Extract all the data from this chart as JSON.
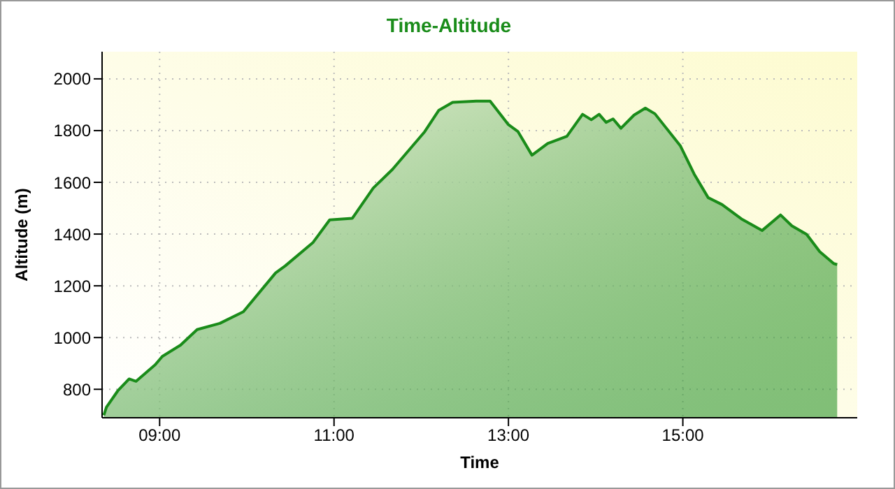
{
  "chart_data": {
    "type": "area",
    "title": "Time-Altitude",
    "xlabel": "Time",
    "ylabel": "Altitude (m)",
    "xlim": [
      8.34,
      17
    ],
    "xticks": [
      {
        "value": 9,
        "label": "09:00"
      },
      {
        "value": 11,
        "label": "11:00"
      },
      {
        "value": 13,
        "label": "13:00"
      },
      {
        "value": 15,
        "label": "15:00"
      }
    ],
    "ylim": [
      690,
      2105
    ],
    "yticks": [
      800,
      1000,
      1200,
      1400,
      1600,
      1800,
      2000
    ],
    "grid": true,
    "legend": false,
    "marker": "none",
    "line_style": "solid",
    "x": [
      8.36,
      8.39,
      8.52,
      8.65,
      8.73,
      8.95,
      9.03,
      9.24,
      9.43,
      9.69,
      9.96,
      10.33,
      10.44,
      10.76,
      10.95,
      11.21,
      11.45,
      11.67,
      12.04,
      12.2,
      12.36,
      12.63,
      12.79,
      13.0,
      13.11,
      13.27,
      13.45,
      13.67,
      13.85,
      13.95,
      14.04,
      14.12,
      14.2,
      14.29,
      14.44,
      14.57,
      14.68,
      14.97,
      15.13,
      15.29,
      15.45,
      15.67,
      15.91,
      16.12,
      16.25,
      16.42,
      16.57,
      16.73,
      16.77
    ],
    "series": [
      {
        "color": "#1a8c1a",
        "values": [
          700,
          731,
          794,
          840,
          831,
          895,
          927,
          971,
          1031,
          1055,
          1100,
          1250,
          1277,
          1368,
          1455,
          1461,
          1578,
          1650,
          1796,
          1878,
          1909,
          1914,
          1914,
          1823,
          1796,
          1705,
          1750,
          1778,
          1863,
          1842,
          1863,
          1832,
          1845,
          1809,
          1860,
          1887,
          1865,
          1742,
          1632,
          1541,
          1514,
          1459,
          1414,
          1474,
          1432,
          1399,
          1332,
          1286,
          1282
        ]
      }
    ]
  }
}
